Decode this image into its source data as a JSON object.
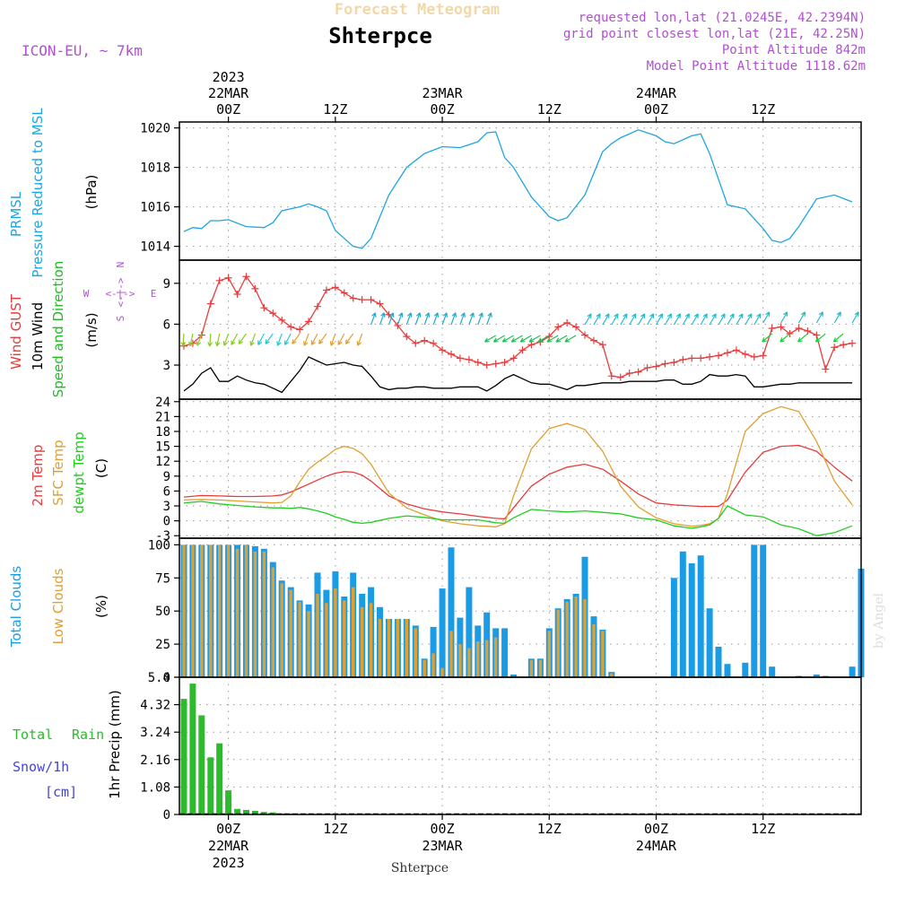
{
  "header": {
    "title_faint": "Forecast Meteogram",
    "location": "Shterpce",
    "model": "ICON-EU, ~ 7km",
    "requested": "requested lon,lat (21.0245E, 42.2394N)",
    "grid_point": "grid point closest lon,lat (21E, 42.25N)",
    "point_alt": "Point Altitude 842m",
    "model_alt": "Model Point Altitude 1118.62m",
    "footer_location": "Shterpce",
    "watermark": "by Angel"
  },
  "time_axis": {
    "top_year": "2023",
    "ticks": [
      {
        "hour": 0,
        "label": "00Z",
        "date": "22MAR",
        "year": "2023"
      },
      {
        "hour": 12,
        "label": "12Z",
        "date": "",
        "year": ""
      },
      {
        "hour": 24,
        "label": "00Z",
        "date": "23MAR",
        "year": ""
      },
      {
        "hour": 36,
        "label": "12Z",
        "date": "",
        "year": ""
      },
      {
        "hour": 48,
        "label": "00Z",
        "date": "24MAR",
        "year": ""
      },
      {
        "hour": 60,
        "label": "12Z",
        "date": "",
        "year": ""
      }
    ],
    "bottom_ticks": [
      {
        "hour": 0,
        "label": "00Z",
        "date": "22MAR",
        "year": "2023"
      },
      {
        "hour": 12,
        "label": "12Z",
        "date": "",
        "year": ""
      },
      {
        "hour": 24,
        "label": "00Z",
        "date": "23MAR",
        "year": ""
      },
      {
        "hour": 36,
        "label": "12Z",
        "date": "",
        "year": ""
      },
      {
        "hour": 48,
        "label": "00Z",
        "date": "24MAR",
        "year": ""
      },
      {
        "hour": 60,
        "label": "12Z",
        "date": "",
        "year": ""
      }
    ],
    "xlim_hours": [
      -5.5,
      71
    ]
  },
  "colors": {
    "pressure": "#1ea5e0",
    "gust": "#e83c3c",
    "wind": "#000000",
    "direction": "#22bb22",
    "temp2m": "#e83c3c",
    "sfc": "#e0a030",
    "dewpt": "#22cc22",
    "total_cloud": "#1a9be6",
    "low_cloud": "#e0a030",
    "rain": "#2cbb2c",
    "snow": "#4444dd",
    "purple": "#b050d0",
    "faint": "#f2d8a8",
    "grid": "#999999"
  },
  "panel_labels": {
    "pressure": {
      "line1": "PRMSL",
      "line2": "Pressure Reduced to MSL",
      "unit": "(hPa)"
    },
    "wind": {
      "gust": "Wind GUST",
      "wind": "10m Wind",
      "dir": "Speed and Direction",
      "unit": "(m/s)",
      "compass": {
        "w": "W",
        "e": "E",
        "n": "N",
        "s": "S",
        "arrow": "<-|->"
      }
    },
    "temp": {
      "t2m": "2m Temp",
      "sfc": "SFC Temp",
      "dew": "dewpt Temp",
      "unit": "(C)"
    },
    "cloud": {
      "total": "Total Clouds",
      "low": "Low Clouds",
      "unit": "(%)"
    },
    "precip": {
      "total": "Total",
      "rain": "Rain",
      "snow": "Snow/1h",
      "cm": "[cm]",
      "ylabel": "1hr Precip (mm)"
    }
  },
  "chart_data": [
    {
      "type": "line",
      "panel": "pressure",
      "title": "PRMSL Pressure Reduced to MSL",
      "ylabel": "(hPa)",
      "ylim": [
        1013.3,
        1020.3
      ],
      "yticks": [
        "1014",
        "1016",
        "1018",
        "1020"
      ],
      "x": [
        -5,
        -4,
        -3,
        -2,
        -1,
        0,
        2,
        4,
        5,
        6,
        7,
        8,
        9,
        10,
        11,
        12,
        13,
        14,
        15,
        16,
        18,
        20,
        22,
        24,
        26,
        28,
        29,
        30,
        31,
        32,
        34,
        36,
        37,
        38,
        40,
        42,
        43,
        44,
        46,
        48,
        49,
        50,
        52,
        53,
        54,
        55,
        56,
        58,
        60,
        61,
        62,
        63,
        64,
        66,
        68,
        70
      ],
      "series": [
        {
          "values": [
            1014.75,
            1014.95,
            1014.9,
            1015.3,
            1015.3,
            1015.35,
            1015.0,
            1014.95,
            1015.2,
            1015.8,
            1015.9,
            1016.0,
            1016.15,
            1016.0,
            1015.8,
            1014.8,
            1014.4,
            1014.0,
            1013.9,
            1014.4,
            1016.6,
            1018.0,
            1018.7,
            1019.05,
            1019.0,
            1019.3,
            1019.75,
            1019.8,
            1018.5,
            1018.0,
            1016.5,
            1015.5,
            1015.3,
            1015.45,
            1016.6,
            1018.8,
            1019.2,
            1019.5,
            1019.9,
            1019.6,
            1019.3,
            1019.2,
            1019.6,
            1019.7,
            1018.7,
            1017.4,
            1016.1,
            1015.9,
            1014.9,
            1014.3,
            1014.2,
            1014.4,
            1015.0,
            1016.4,
            1016.6,
            1016.25
          ]
        }
      ]
    },
    {
      "type": "line",
      "panel": "wind",
      "title": "Wind GUST / 10m Wind Speed and Direction",
      "ylabel": "(m/s)",
      "ylim": [
        0.5,
        10.7
      ],
      "yticks": [
        "3",
        "6",
        "9"
      ],
      "x": [
        -5,
        -4,
        -3,
        -2,
        -1,
        0,
        1,
        2,
        3,
        4,
        5,
        6,
        7,
        8,
        9,
        10,
        11,
        12,
        13,
        14,
        15,
        16,
        17,
        18,
        19,
        20,
        21,
        22,
        23,
        24,
        25,
        26,
        27,
        28,
        29,
        30,
        31,
        32,
        33,
        34,
        35,
        36,
        37,
        38,
        39,
        40,
        41,
        42,
        43,
        44,
        45,
        46,
        47,
        48,
        49,
        50,
        51,
        52,
        53,
        54,
        55,
        56,
        57,
        58,
        59,
        60,
        61,
        62,
        63,
        64,
        65,
        66,
        67,
        68,
        69,
        70
      ],
      "series": [
        {
          "name": "Wind GUST",
          "values": [
            4.4,
            4.6,
            5.2,
            7.5,
            9.2,
            9.4,
            8.2,
            9.5,
            8.6,
            7.2,
            6.8,
            6.3,
            5.8,
            5.6,
            6.2,
            7.3,
            8.5,
            8.7,
            8.3,
            7.9,
            7.8,
            7.8,
            7.5,
            6.7,
            5.9,
            5.1,
            4.6,
            4.8,
            4.6,
            4.1,
            3.8,
            3.5,
            3.4,
            3.2,
            3.0,
            3.1,
            3.2,
            3.5,
            4.1,
            4.5,
            4.7,
            5.1,
            5.8,
            6.1,
            5.8,
            5.2,
            4.8,
            4.5,
            2.2,
            2.1,
            2.4,
            2.5,
            2.8,
            2.9,
            3.1,
            3.2,
            3.4,
            3.5,
            3.5,
            3.6,
            3.7,
            3.9,
            4.1,
            3.8,
            3.6,
            3.7,
            5.7,
            5.8,
            5.3,
            5.7,
            5.5,
            5.2,
            2.7,
            4.3,
            4.5,
            4.6
          ]
        },
        {
          "name": "10m Wind",
          "values": [
            1.1,
            1.6,
            2.4,
            2.8,
            1.8,
            1.8,
            2.2,
            1.9,
            1.7,
            1.6,
            1.3,
            1.0,
            1.8,
            2.6,
            3.6,
            3.3,
            3.0,
            3.1,
            3.2,
            3.0,
            2.9,
            2.2,
            1.4,
            1.2,
            1.3,
            1.3,
            1.4,
            1.4,
            1.3,
            1.3,
            1.3,
            1.4,
            1.4,
            1.4,
            1.1,
            1.5,
            2.0,
            2.3,
            2.0,
            1.7,
            1.6,
            1.6,
            1.4,
            1.2,
            1.5,
            1.5,
            1.6,
            1.7,
            1.7,
            1.7,
            1.8,
            1.8,
            1.8,
            1.8,
            1.9,
            1.9,
            1.6,
            1.6,
            1.8,
            2.3,
            2.2,
            2.2,
            2.3,
            2.2,
            1.4,
            1.4,
            1.5,
            1.6,
            1.6,
            1.7,
            1.7,
            1.7,
            1.7,
            1.7,
            1.7,
            1.7
          ]
        }
      ]
    },
    {
      "type": "line",
      "panel": "temp",
      "title": "2m Temp / SFC Temp / dewpt Temp",
      "ylabel": "(C)",
      "ylim": [
        -3.5,
        24.5
      ],
      "yticks": [
        "24",
        "21",
        "18",
        "15",
        "12",
        "9",
        "6",
        "3",
        "0",
        "-3"
      ],
      "x": [
        -5,
        -3,
        -1,
        1,
        3,
        5,
        6,
        7,
        8,
        9,
        10,
        11,
        12,
        13,
        14,
        15,
        16,
        18,
        20,
        22,
        24,
        26,
        28,
        30,
        31,
        32,
        34,
        36,
        38,
        40,
        42,
        44,
        46,
        48,
        50,
        52,
        53,
        54,
        55,
        56,
        58,
        60,
        62,
        64,
        66,
        68,
        70
      ],
      "series": [
        {
          "name": "2m Temp",
          "values": [
            4.8,
            5.1,
            5.0,
            4.9,
            4.9,
            5.0,
            5.2,
            5.8,
            6.6,
            7.4,
            8.2,
            9.0,
            9.6,
            9.9,
            9.8,
            9.2,
            8.0,
            5.0,
            3.4,
            2.4,
            1.8,
            1.4,
            0.9,
            0.5,
            0.4,
            2.6,
            7.0,
            9.4,
            10.8,
            11.4,
            10.4,
            8.0,
            5.4,
            3.6,
            3.2,
            3.0,
            2.9,
            2.9,
            2.9,
            4.2,
            9.8,
            13.8,
            15.0,
            15.2,
            14.0,
            10.8,
            8.0
          ]
        },
        {
          "name": "SFC Temp",
          "values": [
            4.2,
            4.3,
            4.2,
            4.0,
            3.8,
            3.6,
            3.7,
            5.0,
            7.8,
            10.4,
            11.8,
            13.0,
            14.4,
            15.0,
            14.6,
            13.5,
            11.4,
            5.6,
            2.6,
            1.2,
            0.0,
            -0.6,
            -1.0,
            -1.2,
            -0.6,
            5.0,
            14.5,
            18.6,
            19.6,
            18.4,
            14.0,
            7.0,
            2.8,
            0.6,
            -0.6,
            -1.1,
            -0.9,
            -0.6,
            0.5,
            5.5,
            18.0,
            21.6,
            23.0,
            22.0,
            16.0,
            8.0,
            3.2
          ]
        },
        {
          "name": "dewpt Temp",
          "values": [
            3.6,
            3.9,
            3.4,
            3.1,
            2.8,
            2.6,
            2.6,
            2.5,
            2.7,
            2.4,
            2.0,
            1.5,
            0.8,
            0.3,
            -0.3,
            -0.5,
            -0.3,
            0.5,
            1.0,
            0.7,
            0.2,
            0.2,
            0.2,
            -0.4,
            -0.5,
            0.6,
            2.3,
            2.0,
            1.8,
            2.0,
            1.7,
            1.4,
            0.6,
            0.2,
            -1.0,
            -1.5,
            -1.2,
            -0.8,
            0.5,
            3.0,
            1.2,
            0.8,
            -0.8,
            -1.6,
            -3.0,
            -2.4,
            -1.0
          ]
        }
      ]
    },
    {
      "type": "bar",
      "panel": "cloud",
      "title": "Total Clouds / Low Clouds",
      "ylabel": "(%)",
      "ylim": [
        0,
        105
      ],
      "yticks": [
        "0",
        "25",
        "50",
        "75",
        "100"
      ],
      "x": [
        -5,
        -4,
        -3,
        -2,
        -1,
        0,
        1,
        2,
        3,
        4,
        5,
        6,
        7,
        8,
        9,
        10,
        11,
        12,
        13,
        14,
        15,
        16,
        17,
        18,
        19,
        20,
        21,
        22,
        23,
        24,
        25,
        26,
        27,
        28,
        29,
        30,
        31,
        32,
        33,
        34,
        35,
        36,
        37,
        38,
        39,
        40,
        41,
        42,
        43,
        44,
        45,
        46,
        47,
        48,
        49,
        50,
        51,
        52,
        53,
        54,
        55,
        56,
        57,
        58,
        59,
        60,
        61,
        62,
        63,
        64,
        65,
        66,
        67,
        68,
        69,
        70,
        71
      ],
      "series": [
        {
          "name": "Total Clouds",
          "values": [
            100,
            100,
            100,
            100,
            100,
            100,
            100,
            100,
            99,
            97,
            87,
            73,
            68,
            58,
            55,
            79,
            66,
            80,
            61,
            79,
            63,
            68,
            53,
            44,
            44,
            44,
            39,
            14,
            38,
            67,
            98,
            45,
            68,
            39,
            49,
            37,
            37,
            2,
            0,
            14,
            14,
            37,
            52,
            59,
            63,
            91,
            46,
            36,
            4,
            0,
            0,
            0,
            0,
            0,
            0,
            75,
            95,
            86,
            92,
            52,
            23,
            10,
            0,
            11,
            100,
            100,
            8,
            0,
            0,
            1,
            0,
            2,
            1,
            0,
            0,
            8,
            82
          ]
        },
        {
          "name": "Low Clouds",
          "values": [
            100,
            100,
            100,
            100,
            100,
            100,
            97,
            100,
            95,
            95,
            83,
            71,
            66,
            57,
            50,
            63,
            56,
            67,
            58,
            68,
            53,
            56,
            44,
            44,
            44,
            44,
            37,
            13,
            18,
            7,
            35,
            25,
            22,
            27,
            28,
            30,
            0,
            0,
            0,
            13,
            13,
            35,
            51,
            57,
            61,
            59,
            40,
            35,
            3,
            0,
            0,
            0,
            0,
            0,
            0,
            0,
            0,
            0,
            0,
            0,
            0,
            0,
            0,
            0,
            0,
            0,
            0,
            0,
            0,
            0,
            0,
            0,
            0,
            0,
            0,
            0,
            0
          ]
        }
      ]
    },
    {
      "type": "bar",
      "panel": "precip",
      "title": "Total Rain / Snow/1h",
      "ylabel": "1hr Precip (mm)",
      "ylim": [
        0,
        5.4
      ],
      "yticks": [
        "0",
        "1.08",
        "2.16",
        "3.24",
        "4.32",
        "5.4"
      ],
      "x": [
        -5,
        -4,
        -3,
        -2,
        -1,
        0,
        1,
        2,
        3,
        4,
        5,
        6,
        7,
        8,
        9,
        10
      ],
      "series": [
        {
          "name": "Total Rain",
          "values": [
            4.55,
            5.15,
            3.9,
            2.25,
            2.8,
            0.95,
            0.22,
            0.18,
            0.14,
            0.1,
            0.08,
            0.04,
            0.03,
            0.02,
            0.01,
            0.01
          ]
        },
        {
          "name": "Snow/1h",
          "values": [
            0,
            0,
            0,
            0,
            0,
            0,
            0,
            0,
            0,
            0,
            0,
            0,
            0,
            0,
            0,
            0
          ]
        }
      ]
    }
  ]
}
